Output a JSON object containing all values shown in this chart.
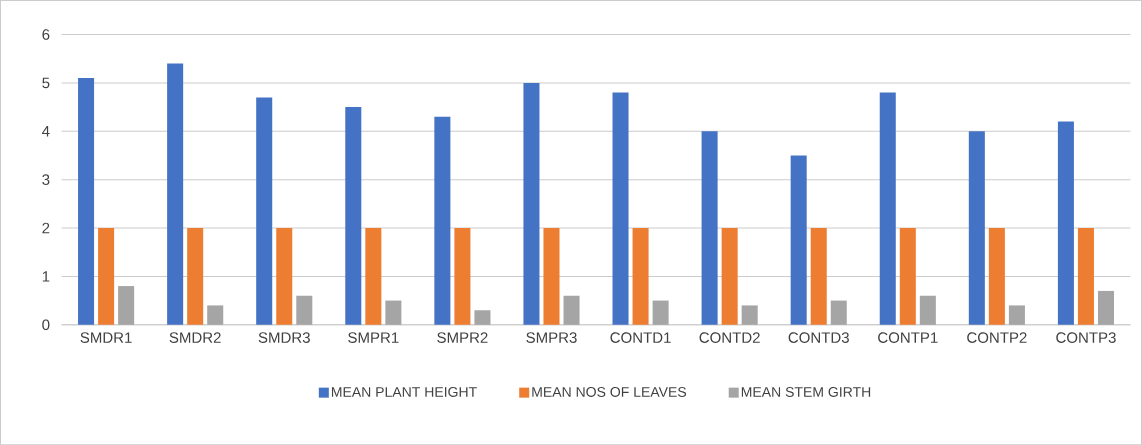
{
  "chart_data": {
    "type": "bar",
    "categories": [
      "SMDR1",
      "SMDR2",
      "SMDR3",
      "SMPR1",
      "SMPR2",
      "SMPR3",
      "CONTD1",
      "CONTD2",
      "CONTD3",
      "CONTP1",
      "CONTP2",
      "CONTP3"
    ],
    "series": [
      {
        "name": "MEAN PLANT HEIGHT",
        "color": "#4472c4",
        "values": [
          5.1,
          5.4,
          4.7,
          4.5,
          4.3,
          5.0,
          4.8,
          4.0,
          3.5,
          4.8,
          4.0,
          4.2
        ]
      },
      {
        "name": "MEAN NOS OF LEAVES",
        "color": "#ed7d31",
        "values": [
          2,
          2,
          2,
          2,
          2,
          2,
          2,
          2,
          2,
          2,
          2,
          2
        ]
      },
      {
        "name": "MEAN STEM GIRTH",
        "color": "#a5a5a5",
        "values": [
          0.8,
          0.4,
          0.6,
          0.5,
          0.3,
          0.6,
          0.5,
          0.4,
          0.5,
          0.6,
          0.4,
          0.7
        ]
      }
    ],
    "ylim": [
      0,
      6
    ],
    "yticks": [
      0,
      1,
      2,
      3,
      4,
      5,
      6
    ],
    "grid": "y",
    "legend": "bottom"
  }
}
